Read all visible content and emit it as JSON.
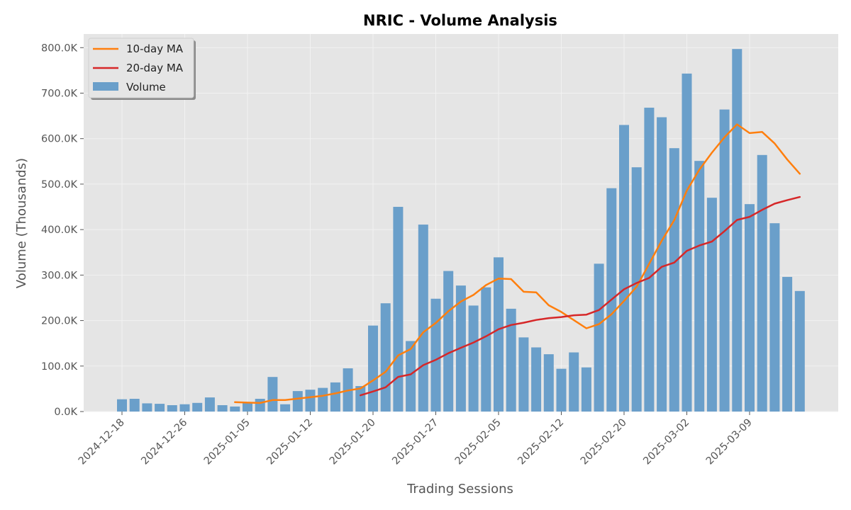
{
  "chart_data": {
    "type": "bar",
    "title": "NRIC - Volume Analysis",
    "xlabel": "Trading Sessions",
    "ylabel": "Volume (Thousands)",
    "ylim": [
      0,
      830
    ],
    "y_ticks": [
      0,
      100,
      200,
      300,
      400,
      500,
      600,
      700,
      800
    ],
    "y_tick_labels": [
      "0.0K",
      "100.0K",
      "200.0K",
      "300.0K",
      "400.0K",
      "500.0K",
      "600.0K",
      "700.0K",
      "800.0K"
    ],
    "x_tick_labels": [
      "2024-12-18",
      "2024-12-26",
      "2025-01-05",
      "2025-01-12",
      "2025-01-20",
      "2025-01-27",
      "2025-02-05",
      "2025-02-12",
      "2025-02-20",
      "2025-03-02",
      "2025-03-09"
    ],
    "x_tick_positions": [
      0,
      5,
      10,
      15,
      20,
      25,
      30,
      35,
      40,
      45,
      50
    ],
    "grid": true,
    "legend_position": "top-left",
    "series": [
      {
        "name": "Volume",
        "kind": "bar",
        "color": "#6a9fca",
        "values": [
          27,
          28,
          18,
          17,
          14,
          16,
          19,
          31,
          14,
          11,
          19,
          28,
          76,
          16,
          45,
          48,
          52,
          64,
          95,
          56,
          189,
          238,
          450,
          155,
          411,
          248,
          309,
          277,
          233,
          273,
          339,
          226,
          163,
          141,
          126,
          94,
          130,
          97,
          325,
          491,
          630,
          537,
          668,
          647,
          579,
          743,
          551,
          470,
          664,
          797,
          456,
          564,
          414,
          296,
          265
        ]
      },
      {
        "name": "10-day MA",
        "kind": "line",
        "color": "#ff7f0e",
        "start_index": 9,
        "values": [
          20.5,
          19.6,
          18.9,
          25.2,
          25.2,
          28.3,
          31.5,
          34.8,
          39.9,
          46.3,
          50.8,
          68.4,
          87.4,
          123.5,
          137.4,
          174.3,
          194.8,
          220.5,
          241.8,
          256.3,
          278.0,
          292.4,
          291.2,
          263.4,
          262.1,
          233.6,
          218.9,
          201.0,
          183.0,
          192.2,
          214.0,
          243.2,
          274.4,
          324.9,
          375.5,
          420.9,
          485.9,
          531.8,
          569.1,
          603.0,
          631.3,
          612.2,
          614.6,
          589.2,
          554.1,
          522.7
        ]
      },
      {
        "name": "20-day MA",
        "kind": "line",
        "color": "#d62728",
        "start_index": 19,
        "values": [
          35.6,
          44.1,
          53.2,
          76.1,
          81.7,
          102.0,
          113.6,
          128.1,
          140.1,
          151.6,
          165.4,
          181.0,
          190.3,
          195.2,
          201.4,
          205.4,
          207.7,
          211.6,
          213.1,
          223.2,
          246.2,
          268.7,
          282.6,
          293.9,
          318.2,
          327.5,
          353.3,
          365.0,
          373.7,
          396.6,
          421.3,
          428.1,
          443.3,
          457.0,
          464.7,
          471.7
        ]
      }
    ]
  }
}
